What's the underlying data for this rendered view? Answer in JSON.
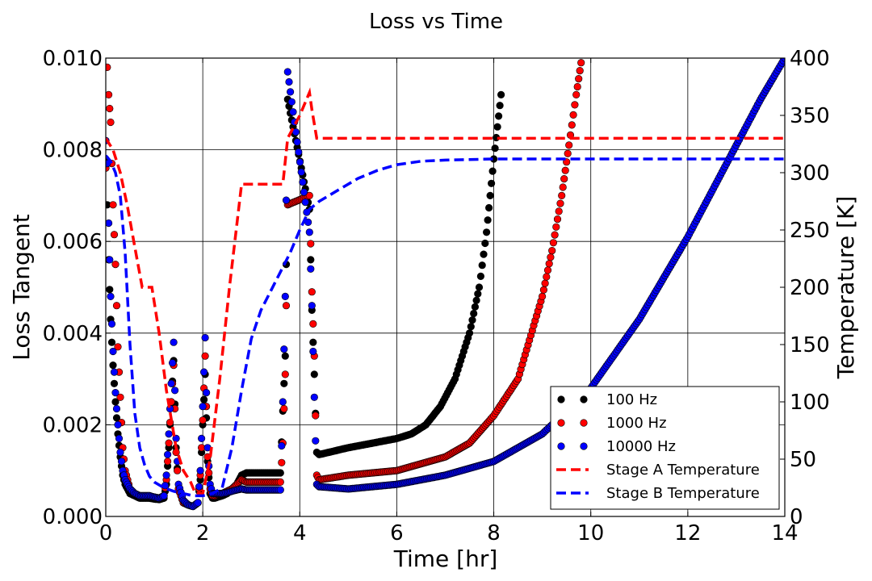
{
  "chart_data": {
    "type": "scatter",
    "title": "Loss vs Time",
    "xlabel": "Time [hr]",
    "ylabel": "Loss Tangent",
    "y2label": "Temperature [K]",
    "xlim": [
      0,
      14
    ],
    "ylim": [
      0,
      0.01
    ],
    "y2lim": [
      0,
      400
    ],
    "xticks": [
      0,
      2,
      4,
      6,
      8,
      10,
      12,
      14
    ],
    "xtick_labels": [
      "0",
      "2",
      "4",
      "6",
      "8",
      "10",
      "12",
      "14"
    ],
    "yticks": [
      0,
      0.002,
      0.004,
      0.006,
      0.008,
      0.01
    ],
    "ytick_labels": [
      "0.000",
      "0.002",
      "0.004",
      "0.006",
      "0.008",
      "0.010"
    ],
    "y2ticks": [
      0,
      50,
      100,
      150,
      200,
      250,
      300,
      350,
      400
    ],
    "y2tick_labels": [
      "0",
      "50",
      "100",
      "150",
      "200",
      "250",
      "300",
      "350",
      "400"
    ],
    "grid": true,
    "legend_position": "bottom-right",
    "series": [
      {
        "name": "100 Hz",
        "kind": "scatter",
        "axis": "left",
        "color": "#000000",
        "x": [
          0.0,
          0.03,
          0.06,
          0.1,
          0.15,
          0.2,
          0.25,
          0.3,
          0.35,
          0.4,
          0.5,
          0.6,
          0.7,
          0.8,
          0.9,
          1.0,
          1.1,
          1.2,
          1.25,
          1.3,
          1.35,
          1.4,
          1.45,
          1.5,
          1.6,
          1.7,
          1.8,
          1.9,
          1.95,
          2.0,
          2.05,
          2.1,
          2.15,
          2.2,
          2.25,
          2.3,
          2.4,
          2.5,
          2.6,
          2.7,
          2.8,
          2.9,
          3.0,
          3.2,
          3.4,
          3.6,
          3.65,
          3.7,
          3.72,
          3.75,
          4.2,
          4.25,
          4.3,
          4.35,
          4.4,
          4.6,
          5.0,
          5.5,
          6.0,
          6.3,
          6.6,
          6.9,
          7.2,
          7.5,
          7.7,
          7.85,
          8.0,
          8.15
        ],
        "y": [
          0.0078,
          0.0068,
          0.0056,
          0.0043,
          0.0033,
          0.0025,
          0.0018,
          0.0013,
          0.0009,
          0.0007,
          0.0005,
          0.00045,
          0.0004,
          0.0004,
          0.0004,
          0.00038,
          0.00037,
          0.0004,
          0.0007,
          0.0015,
          0.0025,
          0.0034,
          0.0015,
          0.0006,
          0.0003,
          0.00025,
          0.00022,
          0.0003,
          0.0008,
          0.002,
          0.0031,
          0.0012,
          0.0005,
          0.0004,
          0.0004,
          0.00042,
          0.00045,
          0.0005,
          0.0006,
          0.0007,
          0.0009,
          0.00095,
          0.00095,
          0.00095,
          0.00095,
          0.00095,
          0.0023,
          0.0035,
          0.0055,
          0.0091,
          0.0067,
          0.0045,
          0.0031,
          0.0014,
          0.00135,
          0.0014,
          0.0015,
          0.0016,
          0.0017,
          0.0018,
          0.002,
          0.0024,
          0.003,
          0.004,
          0.005,
          0.0062,
          0.0078,
          0.0092
        ]
      },
      {
        "name": "1000 Hz",
        "kind": "scatter",
        "axis": "left",
        "color": "#ff0000",
        "x": [
          0.0,
          0.03,
          0.06,
          0.1,
          0.15,
          0.2,
          0.25,
          0.3,
          0.35,
          0.4,
          0.5,
          0.6,
          0.7,
          0.8,
          0.9,
          1.0,
          1.1,
          1.2,
          1.25,
          1.3,
          1.35,
          1.4,
          1.45,
          1.5,
          1.6,
          1.7,
          1.8,
          1.9,
          1.95,
          2.0,
          2.05,
          2.1,
          2.15,
          2.2,
          2.25,
          2.3,
          2.4,
          2.5,
          2.6,
          2.7,
          2.8,
          2.9,
          3.0,
          3.2,
          3.4,
          3.6,
          3.65,
          3.7,
          3.72,
          3.75,
          4.2,
          4.25,
          4.3,
          4.35,
          4.4,
          5.0,
          6.0,
          7.0,
          7.5,
          8.0,
          8.5,
          9.0,
          9.2,
          9.4,
          9.55,
          9.7,
          9.8
        ],
        "y": [
          0.0076,
          0.0098,
          0.0092,
          0.0086,
          0.0068,
          0.0055,
          0.0037,
          0.0026,
          0.0015,
          0.001,
          0.0006,
          0.0005,
          0.00045,
          0.00045,
          0.00045,
          0.00042,
          0.0004,
          0.00045,
          0.0008,
          0.0016,
          0.0025,
          0.0033,
          0.0014,
          0.0006,
          0.0003,
          0.00025,
          0.00022,
          0.0003,
          0.0009,
          0.0021,
          0.0035,
          0.0013,
          0.0006,
          0.00045,
          0.00045,
          0.00048,
          0.0005,
          0.00055,
          0.0006,
          0.0007,
          0.0008,
          0.00075,
          0.00075,
          0.00075,
          0.00075,
          0.00075,
          0.0016,
          0.0031,
          0.0046,
          0.0068,
          0.007,
          0.0049,
          0.0035,
          0.0009,
          0.0008,
          0.0009,
          0.001,
          0.0013,
          0.0016,
          0.0022,
          0.003,
          0.0048,
          0.0058,
          0.007,
          0.0081,
          0.0092,
          0.0099
        ]
      },
      {
        "name": "10000 Hz",
        "kind": "scatter",
        "axis": "left",
        "color": "#0000ff",
        "x": [
          0.0,
          0.03,
          0.06,
          0.1,
          0.15,
          0.2,
          0.25,
          0.3,
          0.35,
          0.4,
          0.5,
          0.6,
          0.7,
          0.8,
          0.9,
          1.0,
          1.1,
          1.2,
          1.25,
          1.3,
          1.35,
          1.4,
          1.45,
          1.5,
          1.6,
          1.7,
          1.8,
          1.9,
          1.95,
          2.0,
          2.05,
          2.1,
          2.15,
          2.2,
          2.25,
          2.3,
          2.4,
          2.5,
          2.6,
          2.7,
          2.8,
          2.9,
          3.0,
          3.2,
          3.4,
          3.6,
          3.65,
          3.7,
          3.72,
          3.75,
          4.2,
          4.25,
          4.3,
          4.35,
          4.4,
          5.0,
          6.0,
          7.0,
          8.0,
          9.0,
          10.0,
          11.0,
          12.0,
          13.0,
          13.5,
          14.0
        ],
        "y": [
          0.0082,
          0.0077,
          0.0064,
          0.0048,
          0.0036,
          0.0027,
          0.002,
          0.0014,
          0.001,
          0.0008,
          0.0006,
          0.0005,
          0.00045,
          0.00045,
          0.00045,
          0.00042,
          0.0004,
          0.00045,
          0.0009,
          0.0018,
          0.0029,
          0.0038,
          0.0017,
          0.0007,
          0.00035,
          0.00025,
          0.00022,
          0.0003,
          0.001,
          0.0024,
          0.0039,
          0.0015,
          0.0007,
          0.0005,
          0.0005,
          0.0005,
          0.0005,
          0.00052,
          0.00055,
          0.00058,
          0.0006,
          0.00058,
          0.00058,
          0.00058,
          0.00058,
          0.00058,
          0.0025,
          0.0048,
          0.0069,
          0.0097,
          0.0062,
          0.0046,
          0.0026,
          0.0007,
          0.00065,
          0.0006,
          0.0007,
          0.0009,
          0.0012,
          0.0018,
          0.0028,
          0.0043,
          0.0061,
          0.0081,
          0.0091,
          0.01
        ]
      },
      {
        "name": "Stage A Temperature",
        "kind": "line",
        "axis": "right",
        "color": "#ff0000",
        "x": [
          0.0,
          0.15,
          0.3,
          0.45,
          0.6,
          0.75,
          0.95,
          1.1,
          1.25,
          1.45,
          1.6,
          1.75,
          1.85,
          2.0,
          2.15,
          2.35,
          2.55,
          2.8,
          3.05,
          3.3,
          3.65,
          3.75,
          4.0,
          4.2,
          4.25,
          4.35,
          4.6,
          6.0,
          8.0,
          10.0,
          12.0,
          14.0
        ],
        "y": [
          330,
          320,
          300,
          270,
          235,
          200,
          200,
          160,
          110,
          60,
          40,
          30,
          20,
          20,
          50,
          120,
          200,
          290,
          290,
          290,
          290,
          330,
          350,
          370,
          355,
          330,
          330,
          330,
          330,
          330,
          330,
          330
        ]
      },
      {
        "name": "Stage B Temperature",
        "kind": "line",
        "axis": "right",
        "color": "#0000ff",
        "x": [
          0.0,
          0.1,
          0.2,
          0.3,
          0.4,
          0.5,
          0.6,
          0.7,
          0.8,
          0.9,
          1.0,
          1.2,
          1.4,
          1.6,
          1.8,
          2.0,
          2.2,
          2.4,
          2.6,
          2.8,
          3.0,
          3.2,
          3.5,
          3.8,
          4.0,
          4.2,
          4.4,
          4.8,
          5.2,
          5.6,
          6.0,
          6.5,
          7.0,
          8.0,
          10.0,
          12.0,
          14.0
        ],
        "y": [
          315,
          310,
          300,
          280,
          230,
          150,
          90,
          60,
          45,
          35,
          30,
          25,
          22,
          20,
          18,
          18,
          20,
          25,
          60,
          110,
          155,
          180,
          205,
          230,
          250,
          268,
          275,
          285,
          295,
          302,
          307,
          310,
          311,
          312,
          312,
          312,
          312
        ]
      }
    ]
  }
}
